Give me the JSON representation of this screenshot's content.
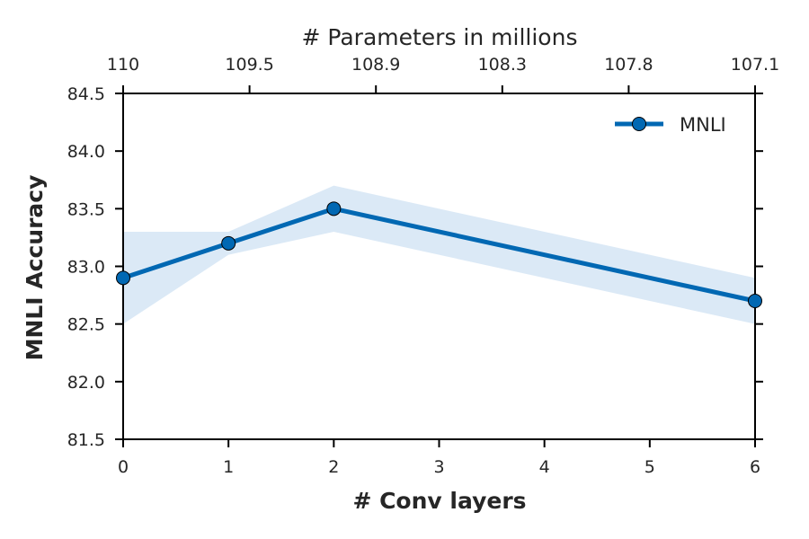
{
  "colors": {
    "series": "#0168b3",
    "band": "#dbe9f6",
    "ylabel": "#0168b3",
    "axis": "#000000",
    "text": "#262626"
  },
  "chart_data": {
    "type": "line",
    "title": "",
    "xlabel": "# Conv layers",
    "ylabel": "MNLI Accuracy",
    "top_xlabel": "# Parameters in millions",
    "x_ticks": [
      "0",
      "1",
      "2",
      "3",
      "4",
      "5",
      "6"
    ],
    "y_ticks": [
      "81.5",
      "82.0",
      "82.5",
      "83.0",
      "83.5",
      "84.0",
      "84.5"
    ],
    "top_ticks": [
      "110",
      "109.5",
      "108.9",
      "108.3",
      "107.8",
      "107.1"
    ],
    "xlim": [
      0,
      6
    ],
    "ylim": [
      81.5,
      84.5
    ],
    "grid": false,
    "legend_position": "top-right",
    "series": [
      {
        "name": "MNLI",
        "x": [
          0,
          1,
          2,
          6
        ],
        "y": [
          82.9,
          83.2,
          83.5,
          82.7
        ],
        "band_upper": [
          83.3,
          83.3,
          83.7,
          82.9
        ],
        "band_lower": [
          82.5,
          83.1,
          83.3,
          82.5
        ]
      }
    ]
  }
}
